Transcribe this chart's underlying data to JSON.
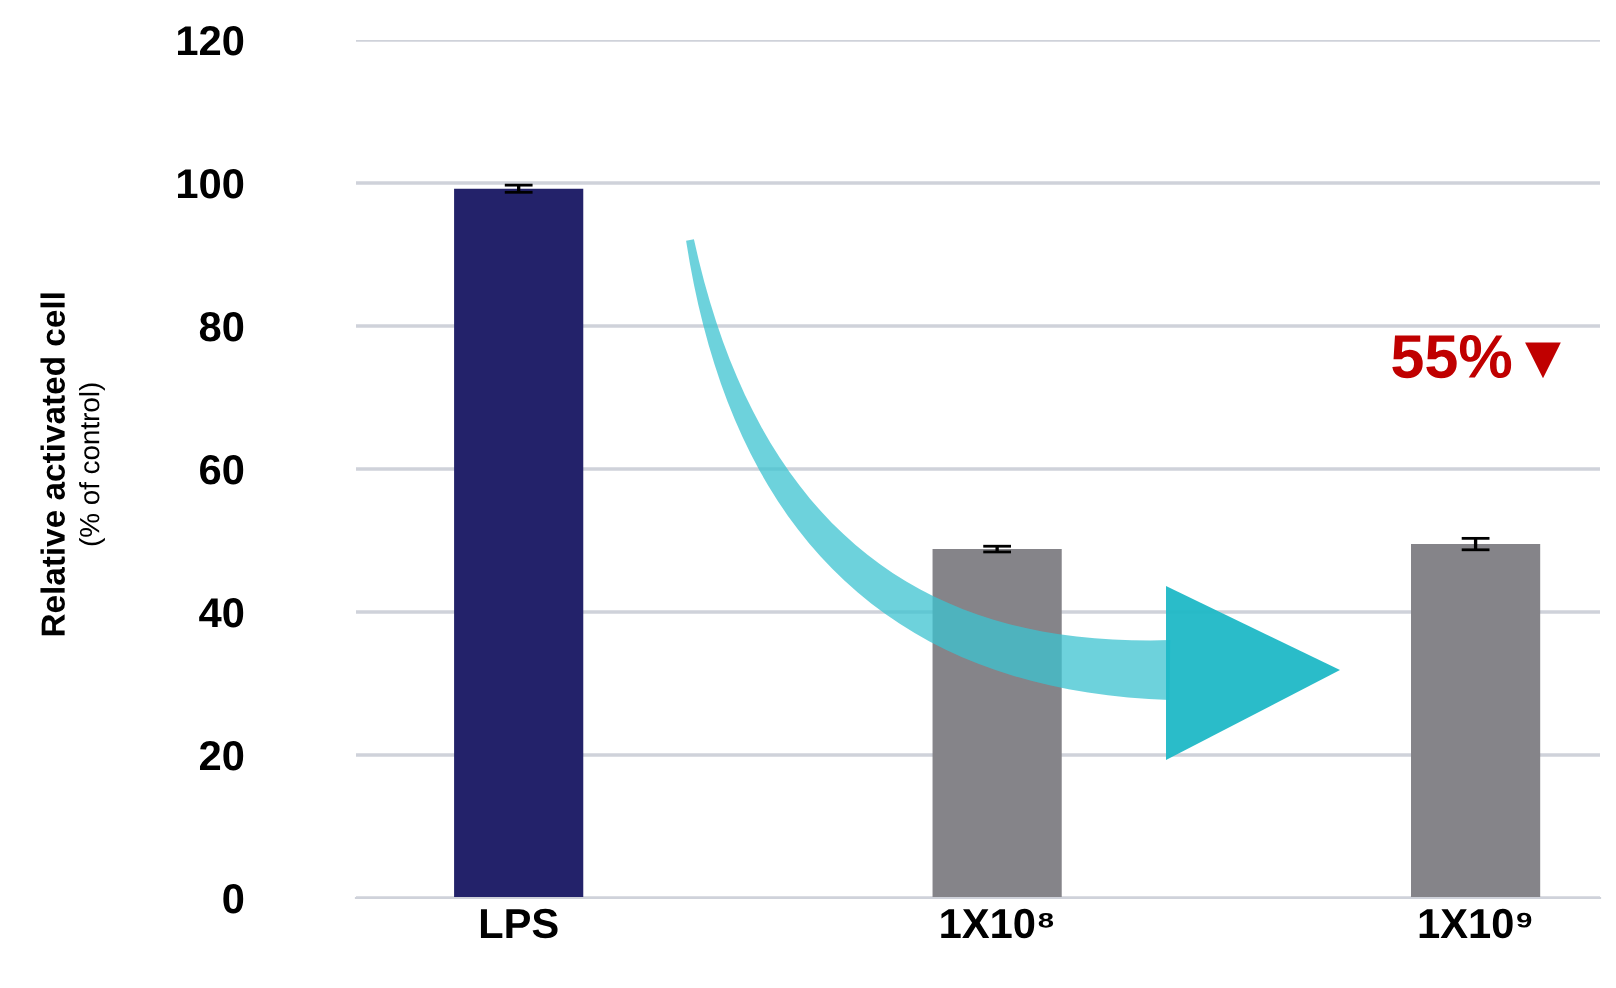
{
  "chart_data": {
    "type": "bar",
    "ylabel": "Relative activated cell\n(% of control)",
    "categories": [
      "LPS",
      "1X10⁸",
      "1X10⁹"
    ],
    "values": [
      99.2,
      48.8,
      49.5
    ],
    "errors": [
      0.5,
      0.4,
      0.8
    ],
    "colors": [
      "#23226a",
      "#858489",
      "#858489"
    ],
    "ylim": [
      0,
      120
    ],
    "yticks": [
      0,
      20,
      40,
      60,
      80,
      100,
      120
    ],
    "grid": "y",
    "annotations": [
      "55%▼"
    ]
  }
}
